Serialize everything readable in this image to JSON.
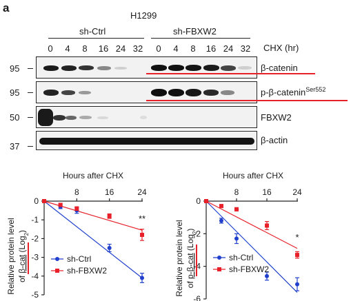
{
  "panel_letter": "a",
  "cell_line": "H1299",
  "groups": [
    "sh-Ctrl",
    "sh-FBXW2"
  ],
  "time_points": [
    "0",
    "4",
    "8",
    "16",
    "24",
    "32"
  ],
  "time_axis_label": "CHX (hr)",
  "blots": [
    {
      "mw": "95",
      "label": "β-catenin",
      "label_sup": ""
    },
    {
      "mw": "95",
      "label": "p-β-catenin",
      "label_sup": "Ser552"
    },
    {
      "mw": "50",
      "label": "FBXW2",
      "label_sup": ""
    },
    {
      "mw": "37",
      "label": "β-actin",
      "label_sup": ""
    }
  ],
  "colors": {
    "ctrl": "#1f3fcc",
    "fbxw2": "#e8202a",
    "underline": "#e8202a"
  },
  "chart_data": [
    {
      "type": "scatter",
      "title": "Hours after CHX",
      "ylabel_line1": "Relative protein level",
      "ylabel_prefix": "of ",
      "ylabel_main": "β-cat",
      "ylabel_suffix": " (Log",
      "ylabel_sub": "2",
      "ylabel_close": ")",
      "xlim": [
        0,
        24
      ],
      "ylim": [
        -5,
        0
      ],
      "xticks": [
        "8",
        "16",
        "24"
      ],
      "yticks": [
        "0",
        "-1",
        "-2",
        "-3",
        "-4",
        "-5"
      ],
      "series": [
        {
          "name": "sh-Ctrl",
          "x": [
            0,
            4,
            8,
            16,
            24
          ],
          "y": [
            0,
            -0.3,
            -0.5,
            -2.5,
            -4.1
          ],
          "err": [
            0.05,
            0.1,
            0.15,
            0.2,
            0.25
          ],
          "fit_end": -4.1,
          "marker": "circle"
        },
        {
          "name": "sh-FBXW2",
          "x": [
            0,
            4,
            8,
            16,
            24
          ],
          "y": [
            0,
            -0.2,
            -0.4,
            -0.8,
            -1.8
          ],
          "err": [
            0.05,
            0.08,
            0.1,
            0.12,
            0.3
          ],
          "fit_end": -1.55,
          "marker": "square"
        }
      ],
      "annotations": [
        {
          "x": 24,
          "y": -1.1,
          "text": "**"
        }
      ]
    },
    {
      "type": "scatter",
      "title": "Hours after CHX",
      "ylabel_line1": "Relative protein level",
      "ylabel_prefix": "of ",
      "ylabel_main": "p-β-cat",
      "ylabel_suffix": " (Log",
      "ylabel_sub": "2",
      "ylabel_close": ")",
      "xlim": [
        0,
        24
      ],
      "ylim": [
        -6,
        0
      ],
      "xticks": [
        "8",
        "16",
        "24"
      ],
      "yticks": [
        "0",
        "-2",
        "-4",
        "-6"
      ],
      "series": [
        {
          "name": "sh-Ctrl",
          "x": [
            0,
            4,
            8,
            16,
            24
          ],
          "y": [
            0,
            -1.2,
            -2.3,
            -4.6,
            -5.1
          ],
          "err": [
            0.05,
            0.15,
            0.3,
            0.25,
            0.4
          ],
          "fit_end": -5.6,
          "marker": "circle"
        },
        {
          "name": "sh-FBXW2",
          "x": [
            0,
            4,
            8,
            16,
            24
          ],
          "y": [
            0,
            -0.3,
            -0.5,
            -1.5,
            -3.3
          ],
          "err": [
            0.05,
            0.08,
            0.1,
            0.25,
            0.2
          ],
          "fit_end": -2.9,
          "marker": "square"
        }
      ],
      "annotations": [
        {
          "x": 24,
          "y": -2.4,
          "text": "*"
        }
      ]
    }
  ]
}
